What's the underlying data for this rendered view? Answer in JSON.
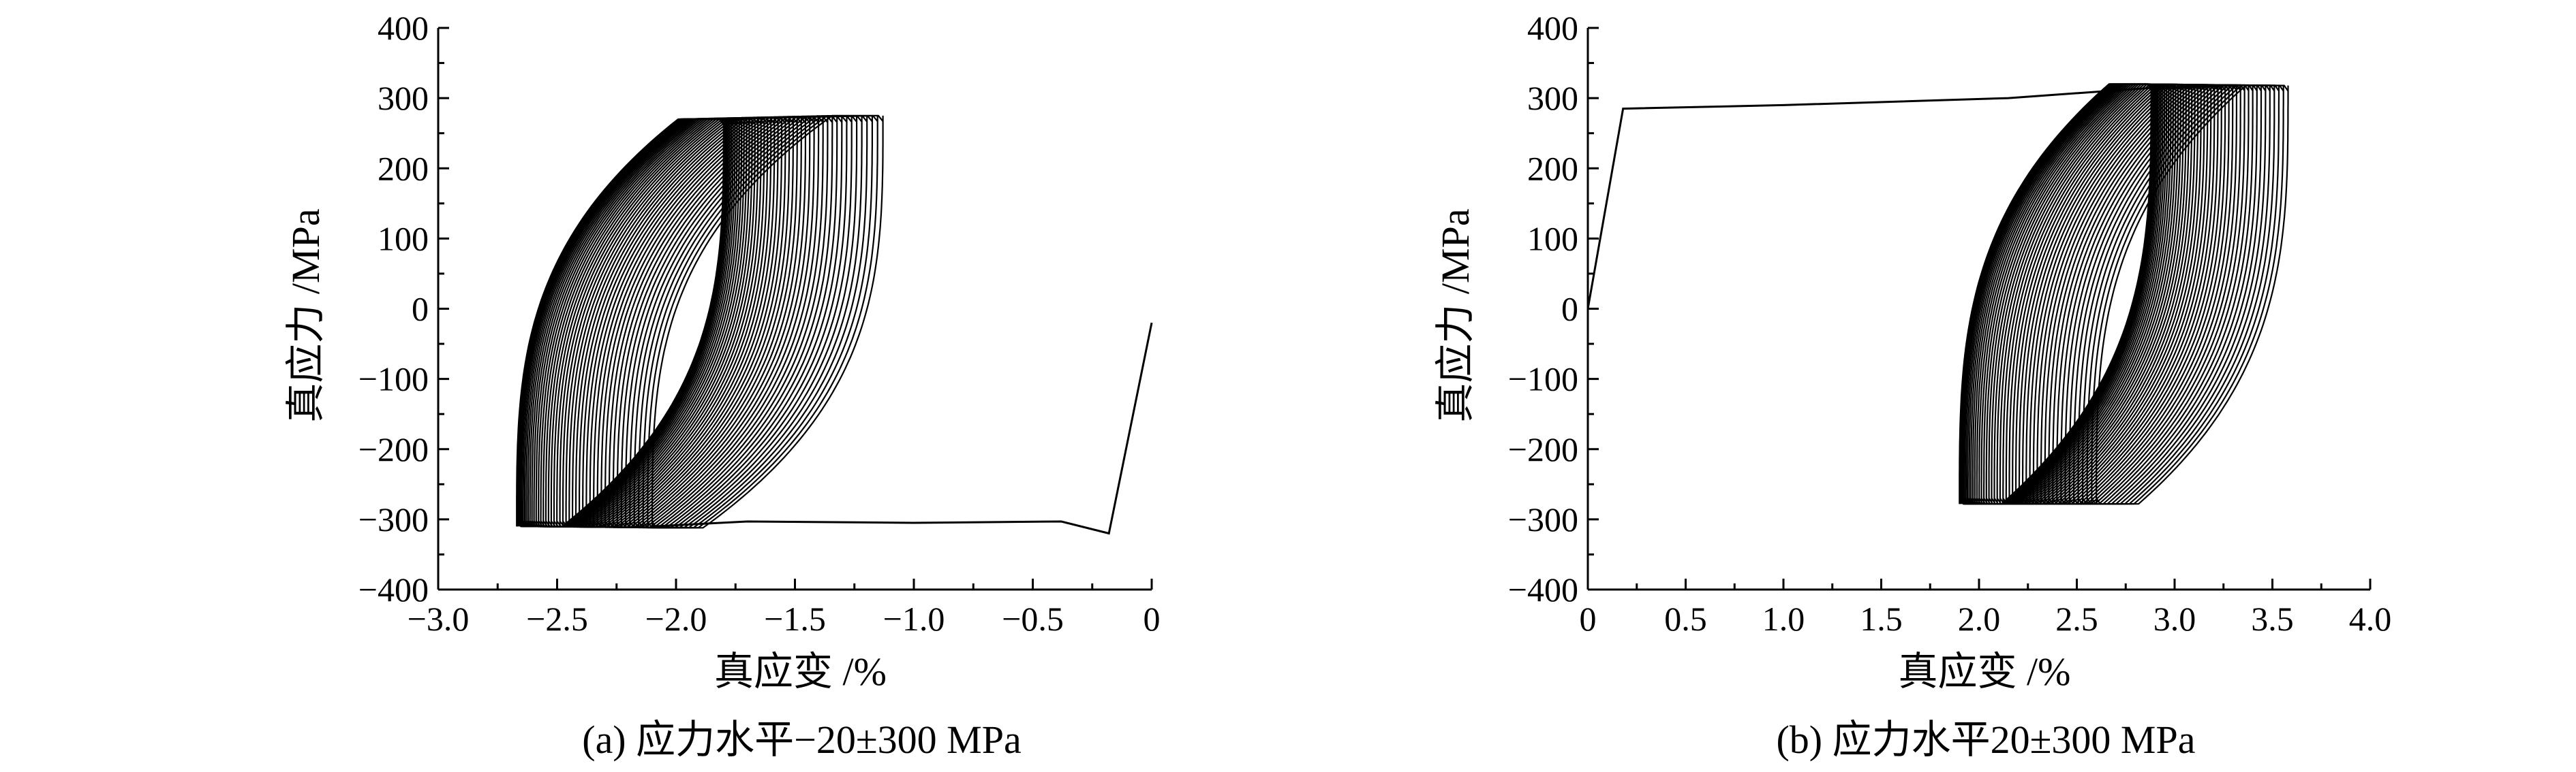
{
  "chart_data": [
    {
      "type": "line",
      "caption": "(a) 应力水平−20±300 MPa",
      "xlabel": "真应变 /%",
      "ylabel": "真应力 /MPa",
      "xlim": [
        -3.0,
        0
      ],
      "ylim": [
        -400,
        400
      ],
      "x_ticks": [
        -3.0,
        -2.5,
        -2.0,
        -1.5,
        -1.0,
        -0.5,
        0
      ],
      "x_tick_labels": [
        "−3.0",
        "−2.5",
        "−2.0",
        "−1.5",
        "−1.0",
        "−0.5",
        "0"
      ],
      "y_ticks": [
        -400,
        -300,
        -200,
        -100,
        0,
        100,
        200,
        300,
        400
      ],
      "y_tick_labels": [
        "−400",
        "−300",
        "−200",
        "−100",
        "0",
        "100",
        "200",
        "300",
        "400"
      ],
      "grid": false,
      "initial_path": {
        "x": [
          0,
          -0.18,
          -0.38,
          -1.0,
          -1.7,
          -2.1
        ],
        "y": [
          -20,
          -320,
          -303,
          -305,
          -303,
          -310
        ]
      },
      "loops": {
        "count": 48,
        "first": {
          "x_left": -2.1,
          "x_right": -1.13,
          "y_max": 275,
          "y_min": -312
        },
        "last": {
          "x_left": -2.67,
          "x_right": -1.8,
          "y_max": 270,
          "y_min": -310
        },
        "stress_amplitude": 300,
        "mean_stress": -20
      },
      "line_color": "#000000"
    },
    {
      "type": "line",
      "caption": "(b) 应力水平20±300 MPa",
      "xlabel": "真应变 /%",
      "ylabel": "真应力 /MPa",
      "xlim": [
        0,
        4.0
      ],
      "ylim": [
        -400,
        400
      ],
      "x_ticks": [
        0,
        0.5,
        1.0,
        1.5,
        2.0,
        2.5,
        3.0,
        3.5,
        4.0
      ],
      "x_tick_labels": [
        "0",
        "0.5",
        "1.0",
        "1.5",
        "2.0",
        "2.5",
        "3.0",
        "3.5",
        "4.0"
      ],
      "y_ticks": [
        -400,
        -300,
        -200,
        -100,
        0,
        100,
        200,
        300,
        400
      ],
      "y_tick_labels": [
        "−400",
        "−300",
        "−200",
        "−100",
        "0",
        "100",
        "200",
        "300",
        "400"
      ],
      "grid": false,
      "initial_path": {
        "x": [
          0,
          0.18,
          1.0,
          2.15,
          2.9,
          3.3
        ],
        "y": [
          0,
          285,
          290,
          300,
          315,
          318
        ]
      },
      "loops": {
        "count": 48,
        "first": {
          "x_left": 2.6,
          "x_right": 3.58,
          "y_max": 318,
          "y_min": -278
        },
        "last": {
          "x_left": 1.9,
          "x_right": 2.88,
          "y_max": 320,
          "y_min": -278
        },
        "stress_amplitude": 300,
        "mean_stress": 20
      },
      "line_color": "#000000"
    }
  ]
}
